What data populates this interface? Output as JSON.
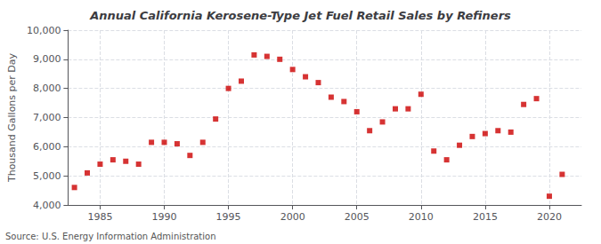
{
  "chart_data": {
    "type": "scatter",
    "title": "Annual California Kerosene-Type Jet Fuel Retail Sales by Refiners",
    "ylabel": "Thousand Gallons per Day",
    "annotation": "Source: U.S. Energy Information Administration",
    "x": [
      1983,
      1984,
      1985,
      1986,
      1987,
      1988,
      1989,
      1990,
      1991,
      1992,
      1993,
      1994,
      1995,
      1996,
      1997,
      1998,
      1999,
      2000,
      2001,
      2002,
      2003,
      2004,
      2005,
      2006,
      2007,
      2008,
      2009,
      2010,
      2011,
      2012,
      2013,
      2014,
      2015,
      2016,
      2017,
      2018,
      2019,
      2020,
      2021
    ],
    "values": [
      4600,
      5100,
      5400,
      5550,
      5500,
      5400,
      6150,
      6150,
      6100,
      5700,
      6150,
      6950,
      8000,
      8250,
      9150,
      9100,
      9000,
      8650,
      8400,
      8200,
      7700,
      7550,
      7200,
      6550,
      6850,
      7300,
      7300,
      7800,
      5850,
      5550,
      6050,
      6350,
      6450,
      6550,
      6500,
      7450,
      7650,
      4300,
      5050
    ],
    "color": "#cc0000",
    "marker": "square",
    "xlim": [
      1982.5,
      2022.5
    ],
    "xticks": [
      1985,
      1990,
      1995,
      2000,
      2005,
      2010,
      2015,
      2020
    ],
    "ylim": [
      4000,
      10000
    ],
    "yticks": [
      {
        "value": 4000,
        "label": "4,000"
      },
      {
        "value": 5000,
        "label": "5,000"
      },
      {
        "value": 6000,
        "label": "6,000"
      },
      {
        "value": 7000,
        "label": "7,000"
      },
      {
        "value": 8000,
        "label": "8,000"
      },
      {
        "value": 9000,
        "label": "9,000"
      },
      {
        "value": 10000,
        "label": "10,000"
      }
    ],
    "grid": true
  }
}
